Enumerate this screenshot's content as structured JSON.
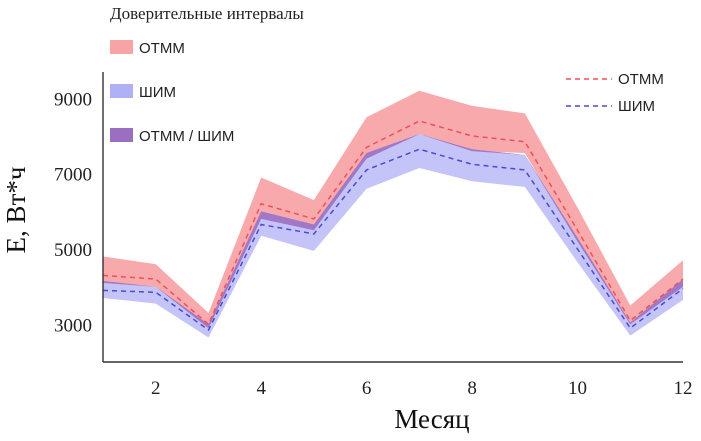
{
  "chart_data": {
    "type": "area",
    "xlabel": "Месяц",
    "ylabel": "E, Вт*ч",
    "xlim": [
      1,
      12
    ],
    "ylim": [
      2000,
      9700
    ],
    "x_ticks": [
      2,
      4,
      6,
      8,
      10,
      12
    ],
    "y_ticks": [
      3000,
      5000,
      7000,
      9000
    ],
    "grid": false,
    "x": [
      1,
      2,
      3,
      4,
      5,
      6,
      7,
      8,
      9,
      10,
      11,
      12
    ],
    "series": [
      {
        "name": "ОТММ",
        "style": "dashed",
        "color": "#f0505a",
        "values": [
          4300,
          4200,
          3000,
          6200,
          5800,
          7700,
          8400,
          8000,
          7850,
          5500,
          3100,
          4200
        ]
      },
      {
        "name": "ШИМ",
        "style": "dashed",
        "color": "#4a4ad6",
        "values": [
          3900,
          3850,
          2850,
          5650,
          5400,
          7100,
          7650,
          7250,
          7100,
          5000,
          2900,
          3950
        ]
      }
    ],
    "confidence_bands": [
      {
        "name": "ОТММ",
        "color": "#f7a4a6",
        "lower": [
          4100,
          4000,
          2900,
          5800,
          5500,
          7400,
          8050,
          7600,
          7550,
          5200,
          3000,
          4000
        ],
        "upper": [
          4800,
          4600,
          3300,
          6900,
          6300,
          8500,
          9200,
          8800,
          8600,
          6100,
          3500,
          4700
        ]
      },
      {
        "name": "ШИМ",
        "color": "#b0b0f6",
        "lower": [
          3700,
          3550,
          2650,
          5350,
          4950,
          6600,
          7150,
          6800,
          6650,
          4650,
          2700,
          3650
        ],
        "upper": [
          4150,
          4000,
          3000,
          6000,
          5650,
          7550,
          8050,
          7650,
          7500,
          5300,
          3050,
          4200
        ]
      }
    ],
    "legend_bands": {
      "title": "Доверительные интервалы",
      "position": "top-left",
      "items": [
        {
          "label": "ОТММ",
          "color": "#f7a4a6"
        },
        {
          "label": "ШИМ",
          "color": "#b0b0f6"
        },
        {
          "label": "ОТММ / ШИМ",
          "color": "#9b6fc0"
        }
      ]
    },
    "legend_lines": {
      "position": "top-right",
      "items": [
        {
          "label": "ОТММ",
          "color": "#f0505a"
        },
        {
          "label": "ШИМ",
          "color": "#4a4ad6"
        }
      ]
    }
  }
}
